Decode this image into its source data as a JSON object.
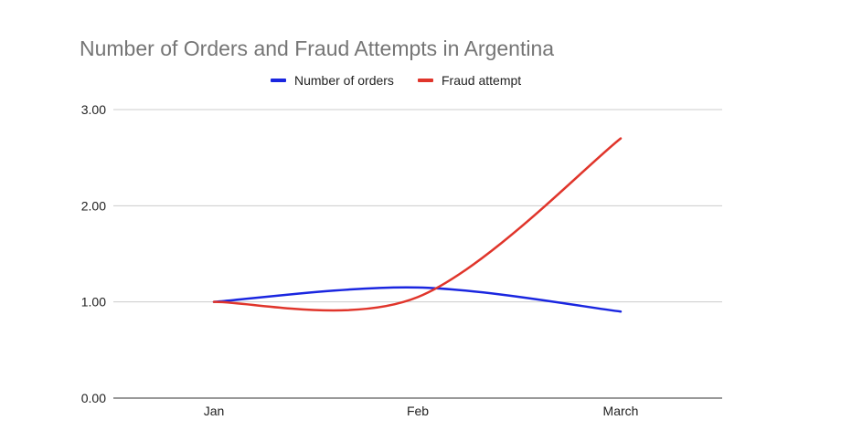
{
  "chart_data": {
    "type": "line",
    "title": "Number of Orders and Fraud Attempts in Argentina",
    "categories": [
      "Jan",
      "Feb",
      "March"
    ],
    "series": [
      {
        "name": "Number of orders",
        "values": [
          1.0,
          1.15,
          0.9
        ],
        "color": "#1a26e0"
      },
      {
        "name": "Fraud attempt",
        "values": [
          1.0,
          1.05,
          2.7
        ],
        "color": "#e0352b"
      }
    ],
    "ylim": [
      0,
      3
    ],
    "y_ticks": [
      "0.00",
      "1.00",
      "2.00",
      "3.00"
    ],
    "y_tick_values": [
      0,
      1,
      2,
      3
    ],
    "grid": true,
    "legend_position": "top",
    "curve": "smooth",
    "xlabel": "",
    "ylabel": ""
  }
}
